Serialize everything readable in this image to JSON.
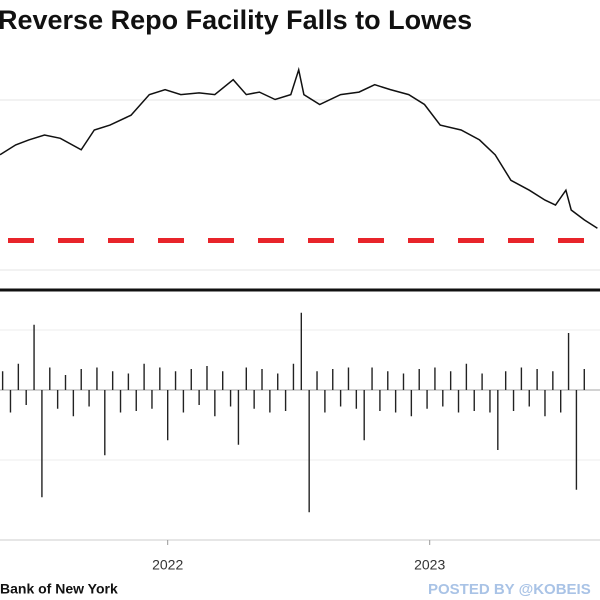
{
  "chart_data": [
    {
      "type": "line",
      "title": "Reverse Repo Facility Falls to Lowes",
      "color": "#111111",
      "x": [
        2021.36,
        2021.42,
        2021.47,
        2021.53,
        2021.59,
        2021.67,
        2021.72,
        2021.78,
        2021.86,
        2021.93,
        2021.99,
        2022.05,
        2022.12,
        2022.18,
        2022.25,
        2022.3,
        2022.35,
        2022.41,
        2022.47,
        2022.5,
        2022.52,
        2022.58,
        2022.66,
        2022.73,
        2022.79,
        2022.85,
        2022.92,
        2022.98,
        2023.04,
        2023.12,
        2023.19,
        2023.25,
        2023.31,
        2023.38,
        2023.44,
        2023.48,
        2023.52,
        2023.54,
        2023.59,
        2023.64
      ],
      "values": [
        1390,
        1510,
        1570,
        1630,
        1590,
        1450,
        1690,
        1750,
        1870,
        2120,
        2180,
        2120,
        2140,
        2120,
        2300,
        2120,
        2150,
        2060,
        2120,
        2420,
        2120,
        2000,
        2120,
        2150,
        2240,
        2180,
        2120,
        2000,
        1750,
        1690,
        1570,
        1390,
        1080,
        960,
        840,
        780,
        960,
        720,
        600,
        500
      ],
      "xlim": [
        2021.36,
        2023.65
      ],
      "ylim": [
        -250,
        2600
      ],
      "reference_line": {
        "value": 350,
        "color": "#e8242a"
      }
    },
    {
      "type": "bar",
      "color": "#222222",
      "x": [
        2021.37,
        2021.4,
        2021.43,
        2021.46,
        2021.49,
        2021.52,
        2021.55,
        2021.58,
        2021.61,
        2021.64,
        2021.67,
        2021.7,
        2021.73,
        2021.76,
        2021.79,
        2021.82,
        2021.85,
        2021.88,
        2021.91,
        2021.94,
        2021.97,
        2022.0,
        2022.03,
        2022.06,
        2022.09,
        2022.12,
        2022.15,
        2022.18,
        2022.21,
        2022.24,
        2022.27,
        2022.3,
        2022.33,
        2022.36,
        2022.39,
        2022.42,
        2022.45,
        2022.48,
        2022.51,
        2022.54,
        2022.57,
        2022.6,
        2022.63,
        2022.66,
        2022.69,
        2022.72,
        2022.75,
        2022.78,
        2022.81,
        2022.84,
        2022.87,
        2022.9,
        2022.93,
        2022.96,
        2022.99,
        2023.02,
        2023.05,
        2023.08,
        2023.11,
        2023.14,
        2023.17,
        2023.2,
        2023.23,
        2023.26,
        2023.29,
        2023.32,
        2023.35,
        2023.38,
        2023.41,
        2023.44,
        2023.47,
        2023.5,
        2023.53,
        2023.56,
        2023.59
      ],
      "values": [
        25,
        -30,
        35,
        -20,
        87,
        -143,
        30,
        -25,
        20,
        -35,
        28,
        -22,
        30,
        -87,
        25,
        -30,
        22,
        -28,
        35,
        -25,
        30,
        -67,
        25,
        -30,
        28,
        -20,
        32,
        -35,
        25,
        -22,
        -73,
        30,
        -25,
        28,
        -30,
        22,
        -28,
        35,
        103,
        -163,
        25,
        -30,
        28,
        -22,
        30,
        -25,
        -67,
        30,
        -28,
        25,
        -30,
        22,
        -35,
        28,
        -25,
        30,
        -22,
        25,
        -30,
        35,
        -28,
        22,
        -30,
        -80,
        25,
        -28,
        30,
        -22,
        28,
        -35,
        25,
        -30,
        76,
        -133,
        28
      ],
      "xlim": [
        2021.36,
        2023.65
      ],
      "ylim": [
        -200,
        120
      ],
      "xticks": [
        2022,
        2023
      ]
    }
  ],
  "footer": {
    "source": "Bank of New York",
    "watermark": "POSTED BY @KOBEIS"
  }
}
